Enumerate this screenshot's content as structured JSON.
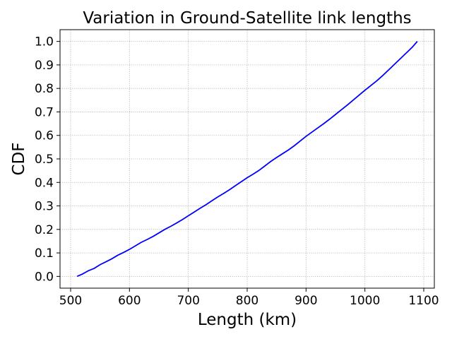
{
  "chart_data": {
    "type": "line",
    "title": "Variation in Ground-Satellite link lengths",
    "xlabel": "Length (km)",
    "ylabel": "CDF",
    "xlim": [
      482,
      1118
    ],
    "ylim": [
      -0.05,
      1.05
    ],
    "xticks": [
      500,
      600,
      700,
      800,
      900,
      1000,
      1100
    ],
    "yticks": [
      0.0,
      0.1,
      0.2,
      0.3,
      0.4,
      0.5,
      0.6,
      0.7,
      0.8,
      0.9,
      1.0
    ],
    "grid": true,
    "series": [
      {
        "color": "#0000ff",
        "x": [
          511,
          520,
          530,
          540,
          550,
          560,
          570,
          580,
          590,
          600,
          610,
          620,
          630,
          640,
          650,
          660,
          670,
          680,
          690,
          700,
          710,
          720,
          730,
          740,
          750,
          760,
          770,
          780,
          790,
          800,
          810,
          820,
          830,
          840,
          850,
          860,
          870,
          880,
          890,
          900,
          910,
          920,
          930,
          940,
          950,
          960,
          970,
          980,
          990,
          1000,
          1010,
          1020,
          1030,
          1040,
          1050,
          1060,
          1070,
          1080,
          1089
        ],
        "y": [
          0.0,
          0.01,
          0.024,
          0.034,
          0.05,
          0.062,
          0.075,
          0.09,
          0.102,
          0.115,
          0.13,
          0.145,
          0.157,
          0.17,
          0.185,
          0.2,
          0.213,
          0.227,
          0.242,
          0.258,
          0.274,
          0.29,
          0.305,
          0.322,
          0.338,
          0.353,
          0.369,
          0.386,
          0.403,
          0.42,
          0.435,
          0.451,
          0.47,
          0.489,
          0.506,
          0.522,
          0.538,
          0.556,
          0.576,
          0.596,
          0.614,
          0.632,
          0.65,
          0.669,
          0.689,
          0.709,
          0.729,
          0.75,
          0.771,
          0.792,
          0.812,
          0.832,
          0.854,
          0.878,
          0.902,
          0.926,
          0.95,
          0.974,
          1.0
        ]
      }
    ]
  }
}
